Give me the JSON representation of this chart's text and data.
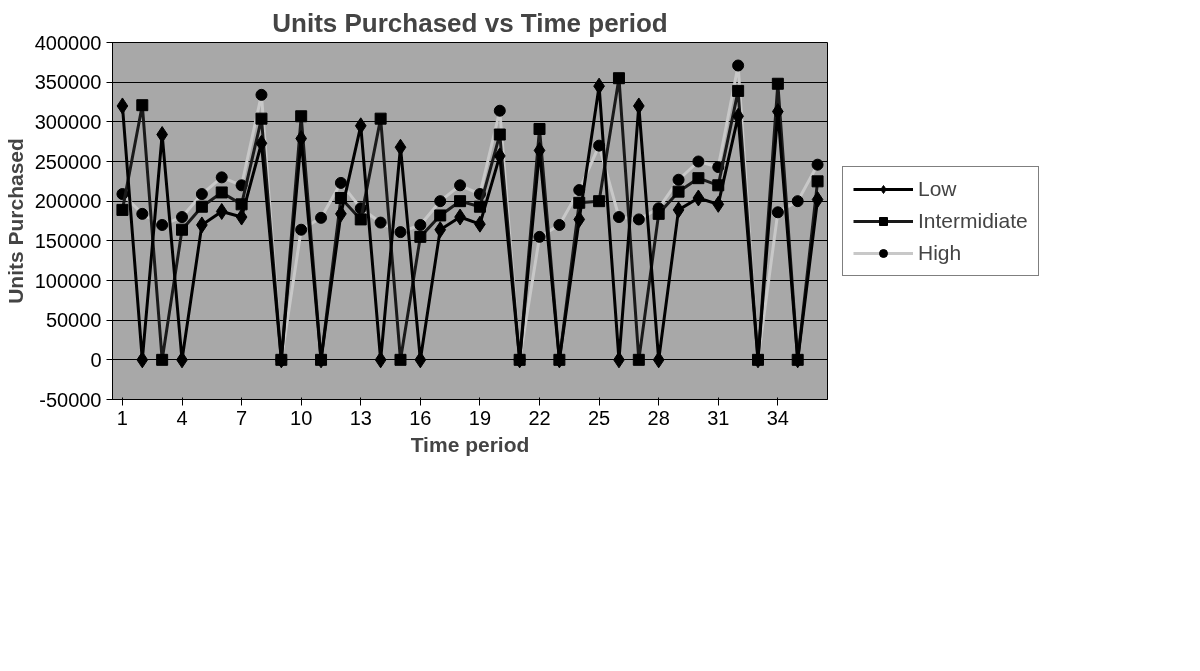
{
  "chart_data": {
    "type": "line",
    "title": "Units Purchased vs Time period",
    "xlabel": "Time period",
    "ylabel": "Units Purchased",
    "x": [
      1,
      2,
      3,
      4,
      5,
      6,
      7,
      8,
      9,
      10,
      11,
      12,
      13,
      14,
      15,
      16,
      17,
      18,
      19,
      20,
      21,
      22,
      23,
      24,
      25,
      26,
      27,
      28,
      29,
      30,
      31,
      32,
      33,
      34,
      35,
      36
    ],
    "xlim": [
      0.5,
      36.5
    ],
    "xticks": [
      1,
      4,
      7,
      10,
      13,
      16,
      19,
      22,
      25,
      28,
      31,
      34
    ],
    "ylim": [
      -50000,
      400000
    ],
    "yticks": [
      -50000,
      0,
      50000,
      100000,
      150000,
      200000,
      250000,
      300000,
      350000,
      400000
    ],
    "grid": "y",
    "legend": "right",
    "series": [
      {
        "name": "Low",
        "color": "#000000",
        "marker": "diamond",
        "values": [
          320000,
          0,
          284000,
          0,
          170000,
          187000,
          180000,
          273000,
          0,
          279000,
          0,
          184000,
          295000,
          0,
          268000,
          0,
          164000,
          180000,
          171000,
          257000,
          0,
          264000,
          0,
          177000,
          345000,
          0,
          320000,
          0,
          189000,
          204000,
          196000,
          307000,
          0,
          313000,
          0,
          202000
        ]
      },
      {
        "name": "Intermidiate",
        "color": "#1a1a1a",
        "marker": "square",
        "values": [
          189000,
          321000,
          0,
          164000,
          193000,
          211000,
          196000,
          304000,
          0,
          307000,
          0,
          204000,
          177000,
          304000,
          0,
          155000,
          182000,
          200000,
          193000,
          284000,
          0,
          291000,
          0,
          198000,
          200000,
          355000,
          0,
          184000,
          212000,
          229000,
          220000,
          339000,
          0,
          348000,
          0,
          225000
        ]
      },
      {
        "name": "High",
        "color": "#c8c8c8",
        "marker": "circle",
        "values": [
          209000,
          184000,
          170000,
          180000,
          209000,
          230000,
          220000,
          334000,
          0,
          164000,
          179000,
          223000,
          191000,
          173000,
          161000,
          170000,
          200000,
          220000,
          209000,
          314000,
          0,
          155000,
          170000,
          214000,
          270000,
          180000,
          177000,
          191000,
          227000,
          250000,
          243000,
          371000,
          0,
          186000,
          200000,
          246000
        ]
      }
    ]
  }
}
